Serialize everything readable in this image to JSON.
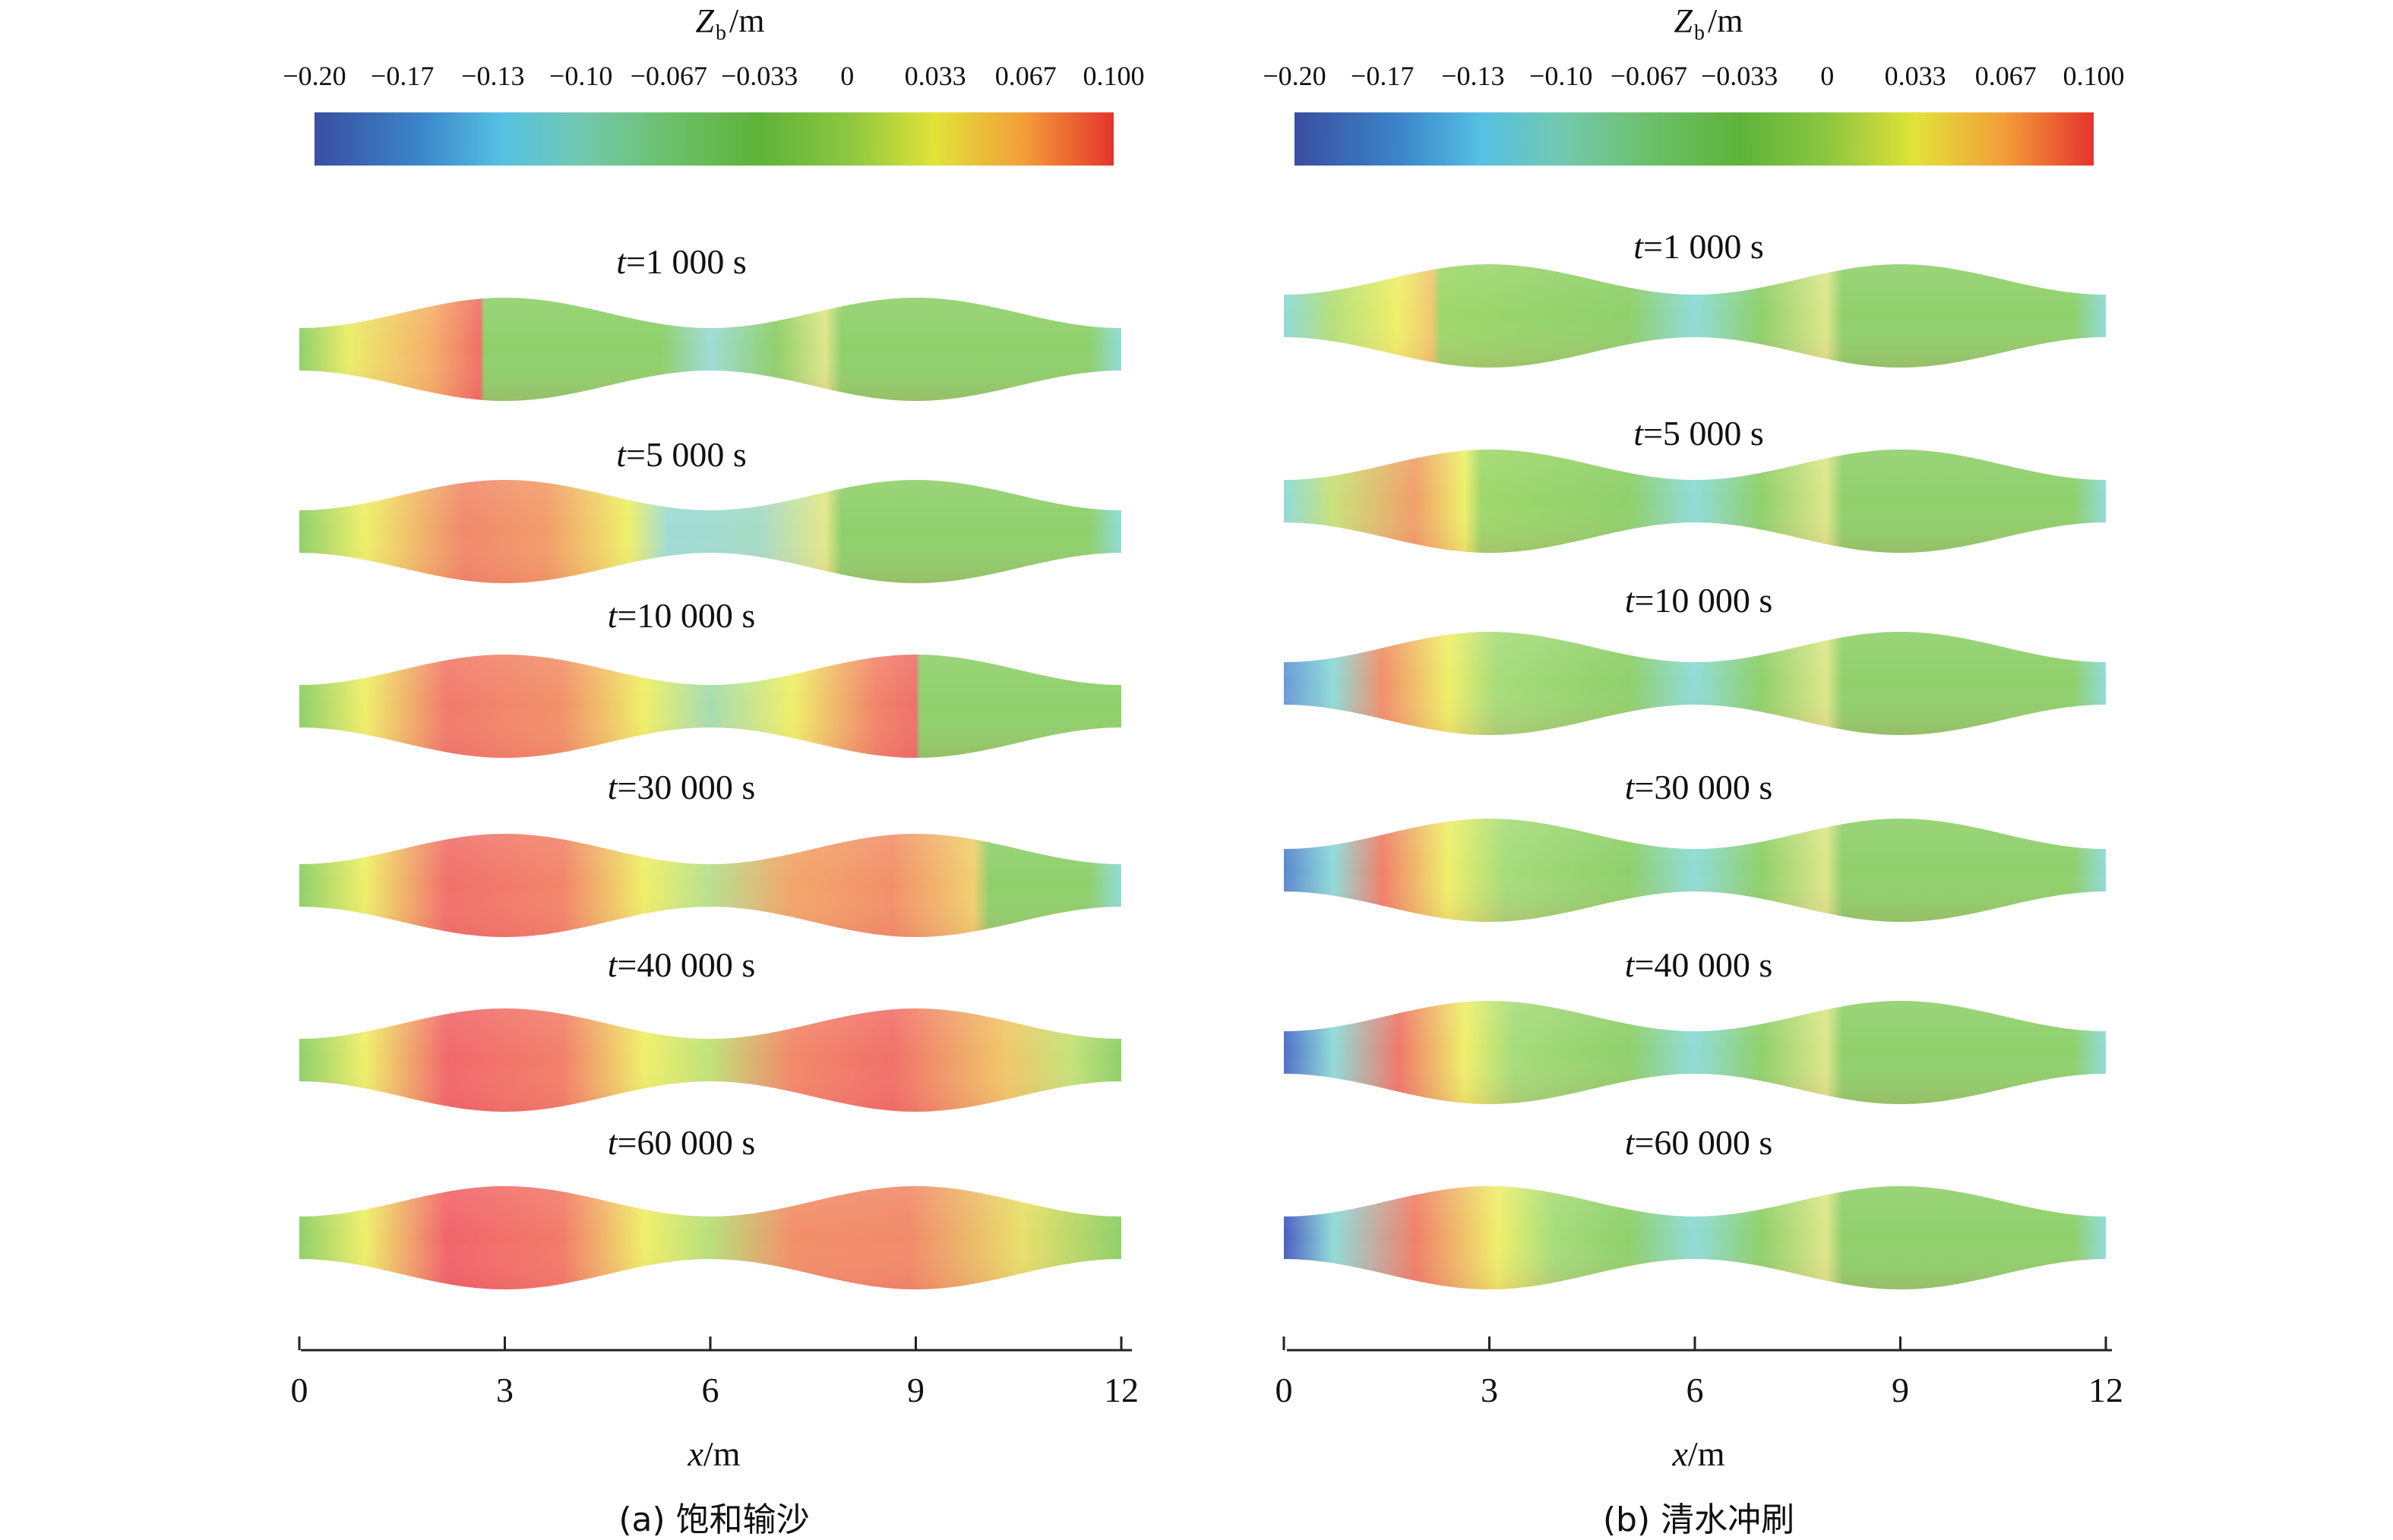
{
  "colorbar": {
    "title_var": "Z",
    "title_sub": "b",
    "title_unit": "/m",
    "ticks": [
      "−0.20",
      "−0.17",
      "−0.13",
      "−0.10",
      "−0.067",
      "−0.033",
      "0",
      "0.033",
      "0.067",
      "0.100"
    ],
    "tick_values": [
      -0.2,
      -0.167,
      -0.133,
      -0.1,
      -0.067,
      -0.033,
      0,
      0.033,
      0.067,
      0.1
    ],
    "range": [
      -0.2,
      0.1
    ],
    "color_stops": [
      {
        "v": -0.2,
        "c": "#3a4ea0"
      },
      {
        "v": -0.16,
        "c": "#3c86c9"
      },
      {
        "v": -0.13,
        "c": "#56c0e3"
      },
      {
        "v": -0.1,
        "c": "#73c9b0"
      },
      {
        "v": -0.067,
        "c": "#6cc06c"
      },
      {
        "v": -0.033,
        "c": "#5eb33a"
      },
      {
        "v": 0,
        "c": "#8cc641"
      },
      {
        "v": 0.033,
        "c": "#e1e339"
      },
      {
        "v": 0.067,
        "c": "#f29c39"
      },
      {
        "v": 0.1,
        "c": "#e4342c"
      }
    ]
  },
  "chart_data": [
    {
      "type": "heatmap",
      "caption": "(a) 饱和输沙",
      "xlabel_var": "x",
      "xlabel_unit": "/m",
      "xlim": [
        0,
        12
      ],
      "xticks": [
        "0",
        "3",
        "6",
        "9",
        "12"
      ],
      "panels": [
        {
          "label_var": "t",
          "label_val": "=1 000 s"
        },
        {
          "label_var": "t",
          "label_val": "=5 000 s"
        },
        {
          "label_var": "t",
          "label_val": "=10 000 s"
        },
        {
          "label_var": "t",
          "label_val": "=30 000 s"
        },
        {
          "label_var": "t",
          "label_val": "=40 000 s"
        },
        {
          "label_var": "t",
          "label_val": "=60 000 s"
        }
      ]
    },
    {
      "type": "heatmap",
      "caption": "(b) 清水冲刷",
      "xlabel_var": "x",
      "xlabel_unit": "/m",
      "xlim": [
        0,
        12
      ],
      "xticks": [
        "0",
        "3",
        "6",
        "9",
        "12"
      ],
      "panels": [
        {
          "label_var": "t",
          "label_val": "=1 000 s"
        },
        {
          "label_var": "t",
          "label_val": "=5 000 s"
        },
        {
          "label_var": "t",
          "label_val": "=10 000 s"
        },
        {
          "label_var": "t",
          "label_val": "=30 000 s"
        },
        {
          "label_var": "t",
          "label_val": "=40 000 s"
        },
        {
          "label_var": "t",
          "label_val": "=60 000 s"
        }
      ]
    }
  ]
}
